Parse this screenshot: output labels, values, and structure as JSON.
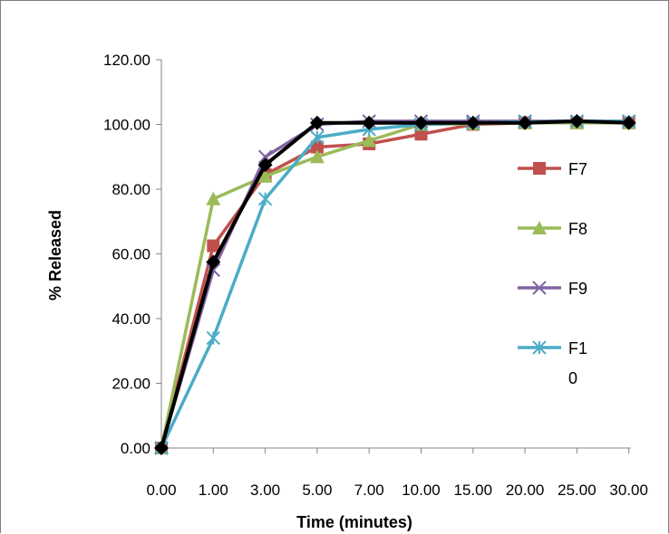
{
  "chart_data": {
    "type": "line",
    "title": "",
    "xlabel": "Time (minutes)",
    "ylabel": "% Released",
    "categories": [
      "0.00",
      "1.00",
      "3.00",
      "5.00",
      "7.00",
      "10.00",
      "15.00",
      "20.00",
      "25.00",
      "30.00"
    ],
    "y_ticks": [
      "0.00",
      "20.00",
      "40.00",
      "60.00",
      "80.00",
      "100.00",
      "120.00"
    ],
    "ylim": [
      0,
      120
    ],
    "grid": false,
    "legend_position": "right",
    "series": [
      {
        "name": "F7",
        "color": "#c0504d",
        "marker": "square",
        "values": [
          0,
          62.5,
          84.5,
          93,
          94,
          97,
          100,
          100.5,
          100.5,
          100.5
        ]
      },
      {
        "name": "F8",
        "color": "#9bbb59",
        "marker": "triangle",
        "values": [
          0,
          77,
          84,
          90,
          95,
          100,
          100.2,
          100.5,
          100.5,
          100.5
        ]
      },
      {
        "name": "F9",
        "color": "#8064a2",
        "marker": "x",
        "values": [
          0,
          55,
          90,
          100,
          101,
          101,
          101,
          101,
          101,
          101
        ]
      },
      {
        "name": "F10",
        "color": "#4bacc6",
        "marker": "star",
        "values": [
          0,
          34,
          77,
          96,
          98.5,
          100,
          100.5,
          100.8,
          101,
          101
        ]
      },
      {
        "name": "",
        "color": "#000000",
        "marker": "diamond",
        "values": [
          0,
          57.5,
          87.5,
          100.5,
          100.5,
          100.5,
          100.5,
          100.5,
          101,
          100.5
        ]
      }
    ]
  }
}
